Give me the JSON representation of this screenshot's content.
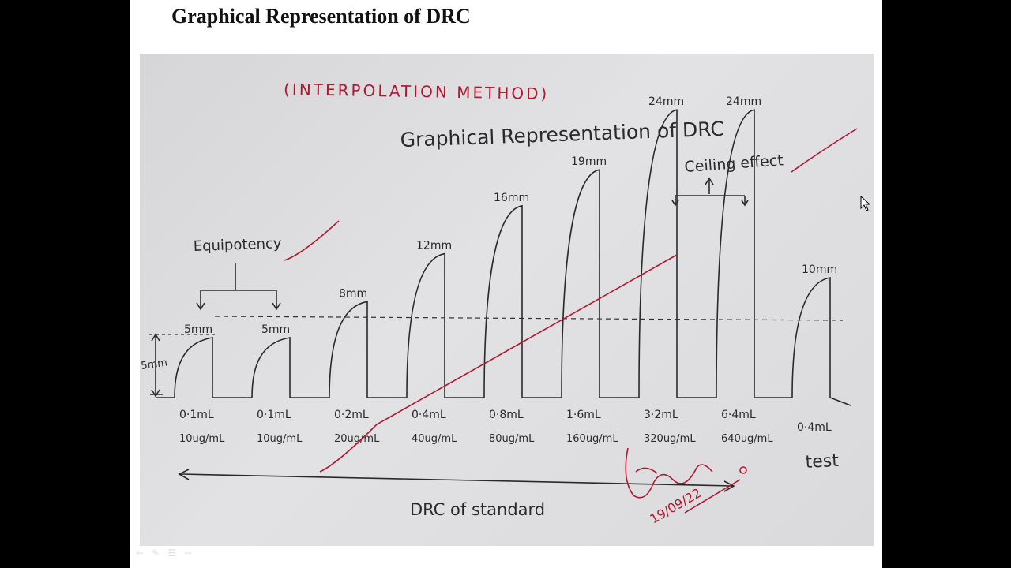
{
  "slide": {
    "title": "Graphical Representation of DRC"
  },
  "diagram": {
    "method_label": "(INTERPOLATION METHOD)",
    "heading": "Graphical Representation of DRC",
    "ceiling_label": "Ceiling effect",
    "equipotency_label": "Equipotency",
    "baseline_label": "5mm",
    "standard_label": "DRC of standard",
    "test_label": "test",
    "signature_date": "19/09/22",
    "bars": [
      {
        "height_label": "5mm",
        "volume": "0·1mL",
        "conc": "10ug/mL",
        "response_mm": 5
      },
      {
        "height_label": "5mm",
        "volume": "0·1mL",
        "conc": "10ug/mL",
        "response_mm": 5
      },
      {
        "height_label": "8mm",
        "volume": "0·2mL",
        "conc": "20ug/mL",
        "response_mm": 8
      },
      {
        "height_label": "12mm",
        "volume": "0·4mL",
        "conc": "40ug/mL",
        "response_mm": 12
      },
      {
        "height_label": "16mm",
        "volume": "0·8mL",
        "conc": "80ug/mL",
        "response_mm": 16
      },
      {
        "height_label": "19mm",
        "volume": "1·6mL",
        "conc": "160ug/mL",
        "response_mm": 19
      },
      {
        "height_label": "24mm",
        "volume": "3·2mL",
        "conc": "320ug/mL",
        "response_mm": 24
      },
      {
        "height_label": "24mm",
        "volume": "6·4mL",
        "conc": "640ug/mL",
        "response_mm": 24
      },
      {
        "height_label": "10mm",
        "volume": "0·4mL",
        "conc": "",
        "response_mm": 10
      }
    ]
  }
}
